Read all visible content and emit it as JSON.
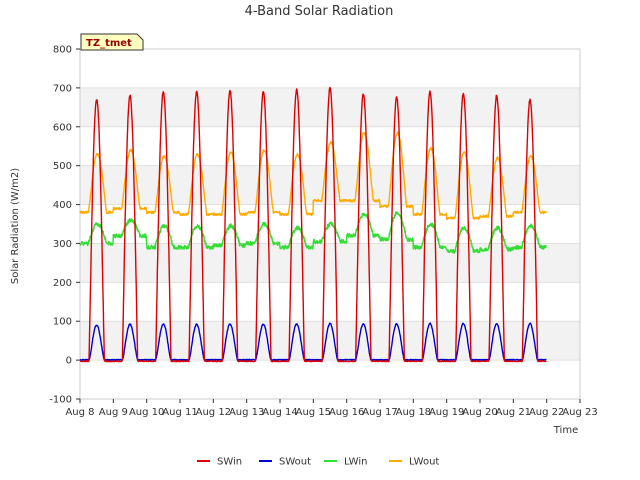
{
  "chart_data": {
    "type": "line",
    "title": "4-Band Solar Radiation",
    "xlabel": "Time",
    "ylabel": "Solar Radiation (W/m2)",
    "site_label": "TZ_tmet",
    "x_tick_labels": [
      "Aug 8",
      "Aug 9",
      "Aug 10",
      "Aug 11",
      "Aug 12",
      "Aug 13",
      "Aug 14",
      "Aug 15",
      "Aug 16",
      "Aug 17",
      "Aug 18",
      "Aug 19",
      "Aug 20",
      "Aug 21",
      "Aug 22",
      "Aug 23"
    ],
    "xlim": [
      "2023-08-08",
      "2023-08-23"
    ],
    "ylim": [
      -100,
      800
    ],
    "y_ticks": [
      -100,
      0,
      100,
      200,
      300,
      400,
      500,
      600,
      700,
      800
    ],
    "grid": true,
    "legend_position": "bottom",
    "day_peaks": {
      "days": [
        "Aug 8",
        "Aug 9",
        "Aug 10",
        "Aug 11",
        "Aug 12",
        "Aug 13",
        "Aug 14",
        "Aug 15",
        "Aug 16",
        "Aug 17",
        "Aug 18",
        "Aug 19",
        "Aug 20",
        "Aug 21"
      ],
      "SWin_peak": [
        670,
        680,
        690,
        690,
        695,
        690,
        695,
        700,
        685,
        675,
        690,
        685,
        680,
        670
      ],
      "SWout_peak": [
        90,
        92,
        93,
        92,
        93,
        92,
        93,
        94,
        93,
        93,
        94,
        94,
        93,
        94
      ],
      "LWin_day": [
        350,
        360,
        345,
        345,
        345,
        350,
        340,
        350,
        375,
        380,
        350,
        340,
        340,
        345
      ],
      "LWin_night": [
        300,
        320,
        290,
        290,
        295,
        300,
        290,
        305,
        320,
        310,
        290,
        280,
        285,
        290
      ],
      "LWout_peak": [
        530,
        540,
        525,
        530,
        535,
        540,
        530,
        560,
        585,
        585,
        545,
        535,
        520,
        525
      ],
      "LWout_night": [
        380,
        390,
        380,
        375,
        375,
        380,
        375,
        410,
        410,
        395,
        375,
        365,
        370,
        380
      ]
    },
    "series": [
      {
        "name": "SWin",
        "color": "#dd0000"
      },
      {
        "name": "SWout",
        "color": "#0000cc"
      },
      {
        "name": "LWin",
        "color": "#33dd33"
      },
      {
        "name": "LWout",
        "color": "#ffaa00"
      }
    ]
  }
}
